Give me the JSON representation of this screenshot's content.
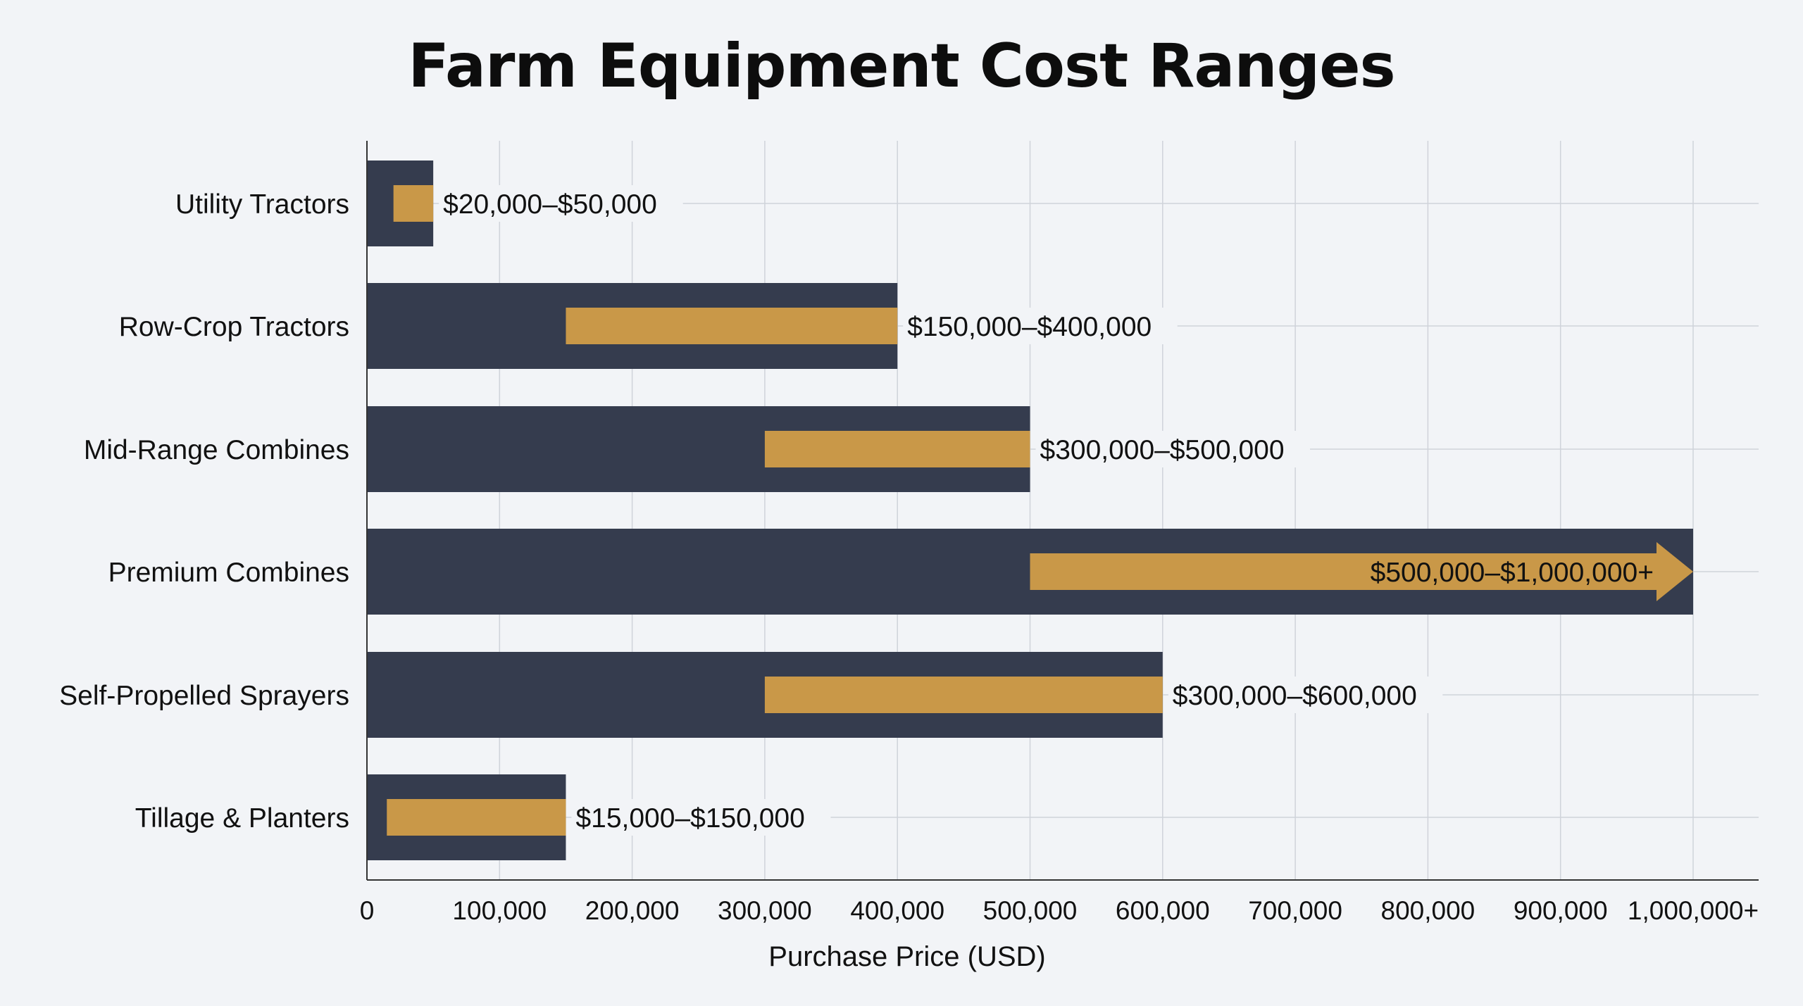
{
  "colors": {
    "background": "#f2f4f7",
    "outer_bar": "#353c4e",
    "range_bar": "#c99848",
    "grid": "#cfd3da",
    "axis": "#333333",
    "text": "#111111"
  },
  "chart_data": {
    "type": "bar",
    "orientation": "horizontal",
    "title": "Farm Equipment Cost Ranges",
    "xlabel": "Purchase Price (USD)",
    "ylabel": "",
    "xlim": [
      0,
      1050000
    ],
    "grid": true,
    "x_ticks": [
      {
        "value": 0,
        "label": "0"
      },
      {
        "value": 100000,
        "label": "100,000"
      },
      {
        "value": 200000,
        "label": "200,000"
      },
      {
        "value": 300000,
        "label": "300,000"
      },
      {
        "value": 400000,
        "label": "400,000"
      },
      {
        "value": 500000,
        "label": "500,000"
      },
      {
        "value": 600000,
        "label": "600,000"
      },
      {
        "value": 700000,
        "label": "700,000"
      },
      {
        "value": 800000,
        "label": "800,000"
      },
      {
        "value": 900000,
        "label": "900,000"
      },
      {
        "value": 1000000,
        "label": "1,000,000+"
      }
    ],
    "categories": [
      "Utility Tractors",
      "Row-Crop Tractors",
      "Mid-Range Combines",
      "Premium Combines",
      "Self-Propelled Sprayers",
      "Tillage & Planters"
    ],
    "ranges": [
      {
        "low": 20000,
        "high": 50000,
        "label": "$20,000–$50,000",
        "open_ended": false
      },
      {
        "low": 150000,
        "high": 400000,
        "label": "$150,000–$400,000",
        "open_ended": false
      },
      {
        "low": 300000,
        "high": 500000,
        "label": "$300,000–$500,000",
        "open_ended": false
      },
      {
        "low": 500000,
        "high": 1000000,
        "label": "$500,000–$1,000,000+",
        "open_ended": true
      },
      {
        "low": 300000,
        "high": 600000,
        "label": "$300,000–$600,000",
        "open_ended": false
      },
      {
        "low": 15000,
        "high": 150000,
        "label": "$15,000–$150,000",
        "open_ended": false
      }
    ]
  }
}
